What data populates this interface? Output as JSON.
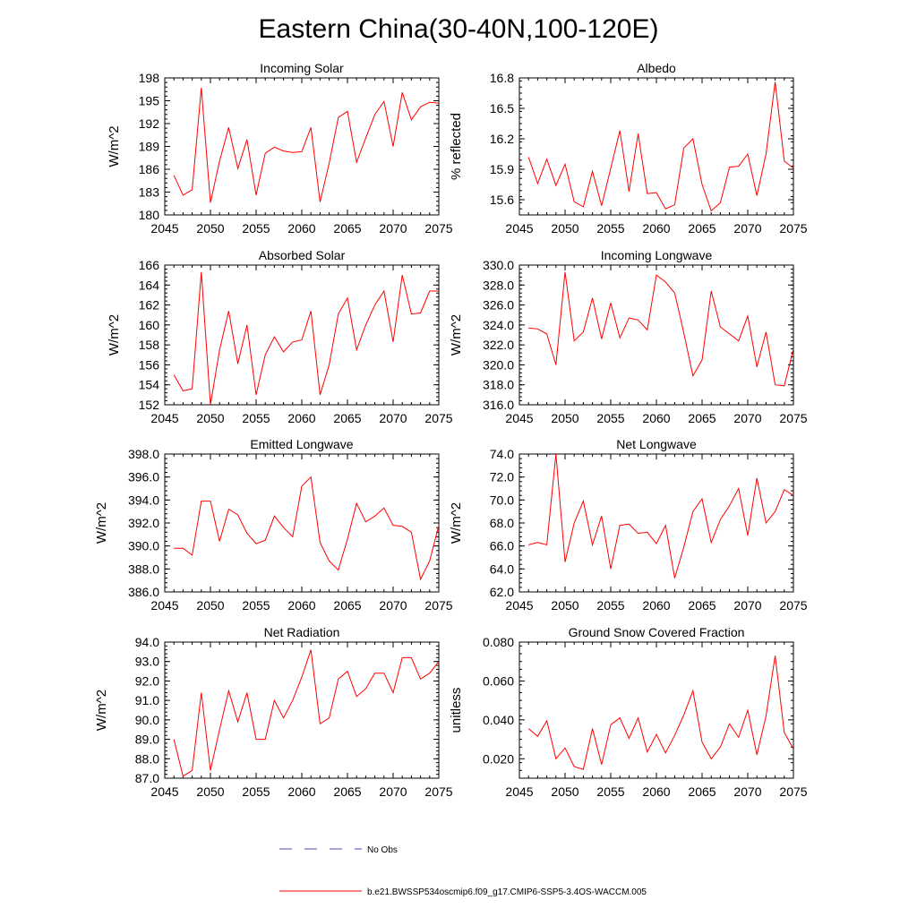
{
  "figure": {
    "title": "Eastern China(30-40N,100-120E)"
  },
  "legend": {
    "obs_label": "No Obs",
    "model_label": "b.e21.BWSSP534oscmip6.f09_g17.CMIP6-SSP5-3.4OS-WACCM.005",
    "obs_color": "#4b4bb4",
    "model_color": "#ff0000"
  },
  "chart_data": [
    {
      "type": "line",
      "title": "Incoming Solar",
      "ylabel": "W/m^2",
      "xlabel": "",
      "xlim": [
        2045,
        2075
      ],
      "ylim": [
        180,
        198
      ],
      "xticks": [
        "2045",
        "2050",
        "2055",
        "2060",
        "2065",
        "2070",
        "2075"
      ],
      "yticks": [
        "180",
        "183",
        "186",
        "189",
        "192",
        "195",
        "198"
      ],
      "series": [
        {
          "name": "b.e21.BWSSP534oscmip6.f09_g17.CMIP6-SSP5-3.4OS-WACCM.005",
          "x": [
            2046,
            2047,
            2048,
            2049,
            2050,
            2051,
            2052,
            2053,
            2054,
            2055,
            2056,
            2057,
            2058,
            2059,
            2060,
            2061,
            2062,
            2063,
            2064,
            2065,
            2066,
            2067,
            2068,
            2069,
            2070,
            2071,
            2072,
            2073,
            2074,
            2075
          ],
          "values": [
            185.2,
            182.6,
            183.3,
            196.7,
            181.6,
            187.1,
            191.5,
            186.1,
            189.9,
            182.6,
            188.1,
            188.9,
            188.4,
            188.2,
            188.3,
            191.5,
            181.7,
            186.8,
            192.8,
            193.6,
            186.9,
            190.1,
            193.2,
            194.9,
            189.0,
            196.1,
            192.5,
            194.2,
            194.8,
            194.7
          ]
        }
      ]
    },
    {
      "type": "line",
      "title": "Albedo",
      "ylabel": "% reflected",
      "xlabel": "",
      "xlim": [
        2045,
        2075
      ],
      "ylim": [
        15.45,
        16.8
      ],
      "xticks": [
        "2045",
        "2050",
        "2055",
        "2060",
        "2065",
        "2070",
        "2075"
      ],
      "yticks": [
        "15.6",
        "15.9",
        "16.2",
        "16.5",
        "16.8"
      ],
      "series": [
        {
          "name": "b.e21.BWSSP534oscmip6.f09_g17.CMIP6-SSP5-3.4OS-WACCM.005",
          "x": [
            2046,
            2047,
            2048,
            2049,
            2050,
            2051,
            2052,
            2053,
            2054,
            2055,
            2056,
            2057,
            2058,
            2059,
            2060,
            2061,
            2062,
            2063,
            2064,
            2065,
            2066,
            2067,
            2068,
            2069,
            2070,
            2071,
            2072,
            2073,
            2074,
            2075
          ],
          "values": [
            16.02,
            15.76,
            16.0,
            15.74,
            15.95,
            15.58,
            15.53,
            15.88,
            15.54,
            15.91,
            16.28,
            15.68,
            16.25,
            15.66,
            15.67,
            15.51,
            15.55,
            16.11,
            16.2,
            15.75,
            15.49,
            15.57,
            15.92,
            15.93,
            16.05,
            15.64,
            16.05,
            16.76,
            15.98,
            15.91
          ]
        }
      ]
    },
    {
      "type": "line",
      "title": "Absorbed Solar",
      "ylabel": "W/m^2",
      "xlabel": "",
      "xlim": [
        2045,
        2075
      ],
      "ylim": [
        152,
        166
      ],
      "xticks": [
        "2045",
        "2050",
        "2055",
        "2060",
        "2065",
        "2070",
        "2075"
      ],
      "yticks": [
        "152",
        "154",
        "156",
        "158",
        "160",
        "162",
        "164",
        "166"
      ],
      "series": [
        {
          "name": "b.e21.BWSSP534oscmip6.f09_g17.CMIP6-SSP5-3.4OS-WACCM.005",
          "x": [
            2046,
            2047,
            2048,
            2049,
            2050,
            2051,
            2052,
            2053,
            2054,
            2055,
            2056,
            2057,
            2058,
            2059,
            2060,
            2061,
            2062,
            2063,
            2064,
            2065,
            2066,
            2067,
            2068,
            2069,
            2070,
            2071,
            2072,
            2073,
            2074,
            2075
          ],
          "values": [
            155.0,
            153.4,
            153.6,
            165.3,
            152.0,
            157.5,
            161.4,
            156.1,
            160.0,
            153.0,
            157.0,
            158.8,
            157.3,
            158.3,
            158.5,
            161.4,
            153.0,
            156.0,
            161.1,
            162.7,
            157.5,
            160.0,
            162.0,
            163.4,
            158.3,
            165.0,
            161.1,
            161.2,
            163.4,
            163.4
          ]
        }
      ]
    },
    {
      "type": "line",
      "title": "Incoming Longwave",
      "ylabel": "W/m^2",
      "xlabel": "",
      "xlim": [
        2045,
        2075
      ],
      "ylim": [
        316,
        330
      ],
      "xticks": [
        "2045",
        "2050",
        "2055",
        "2060",
        "2065",
        "2070",
        "2075"
      ],
      "yticks": [
        "316.0",
        "318.0",
        "320.0",
        "322.0",
        "324.0",
        "326.0",
        "328.0",
        "330.0"
      ],
      "series": [
        {
          "name": "b.e21.BWSSP534oscmip6.f09_g17.CMIP6-SSP5-3.4OS-WACCM.005",
          "x": [
            2046,
            2047,
            2048,
            2049,
            2050,
            2051,
            2052,
            2053,
            2054,
            2055,
            2056,
            2057,
            2058,
            2059,
            2060,
            2061,
            2062,
            2063,
            2064,
            2065,
            2066,
            2067,
            2068,
            2069,
            2070,
            2071,
            2072,
            2073,
            2074,
            2075
          ],
          "values": [
            323.7,
            323.6,
            323.1,
            320.0,
            329.3,
            322.4,
            323.3,
            326.7,
            322.6,
            326.2,
            322.7,
            324.7,
            324.5,
            323.5,
            329.0,
            328.3,
            327.2,
            323.2,
            318.9,
            320.5,
            327.4,
            323.8,
            323.1,
            322.4,
            324.9,
            319.8,
            323.3,
            318.0,
            317.9,
            321.6
          ]
        }
      ]
    },
    {
      "type": "line",
      "title": "Emitted Longwave",
      "ylabel": "W/m^2",
      "xlabel": "",
      "xlim": [
        2045,
        2075
      ],
      "ylim": [
        386,
        398
      ],
      "xticks": [
        "2045",
        "2050",
        "2055",
        "2060",
        "2065",
        "2070",
        "2075"
      ],
      "yticks": [
        "386.0",
        "388.0",
        "390.0",
        "392.0",
        "394.0",
        "396.0",
        "398.0"
      ],
      "series": [
        {
          "name": "b.e21.BWSSP534oscmip6.f09_g17.CMIP6-SSP5-3.4OS-WACCM.005",
          "x": [
            2046,
            2047,
            2048,
            2049,
            2050,
            2051,
            2052,
            2053,
            2054,
            2055,
            2056,
            2057,
            2058,
            2059,
            2060,
            2061,
            2062,
            2063,
            2064,
            2065,
            2066,
            2067,
            2068,
            2069,
            2070,
            2071,
            2072,
            2073,
            2074,
            2075
          ],
          "values": [
            389.8,
            389.8,
            389.2,
            393.9,
            393.9,
            390.4,
            393.2,
            392.7,
            391.1,
            390.2,
            390.5,
            392.6,
            391.6,
            390.8,
            395.2,
            396.0,
            390.3,
            388.7,
            387.9,
            390.6,
            393.7,
            392.1,
            392.6,
            393.3,
            391.8,
            391.7,
            391.2,
            387.1,
            388.7,
            391.8
          ]
        }
      ]
    },
    {
      "type": "line",
      "title": "Net Longwave",
      "ylabel": "W/m^2",
      "xlabel": "",
      "xlim": [
        2045,
        2075
      ],
      "ylim": [
        62,
        74
      ],
      "xticks": [
        "2045",
        "2050",
        "2055",
        "2060",
        "2065",
        "2070",
        "2075"
      ],
      "yticks": [
        "62.0",
        "64.0",
        "66.0",
        "68.0",
        "70.0",
        "72.0",
        "74.0"
      ],
      "series": [
        {
          "name": "b.e21.BWSSP534oscmip6.f09_g17.CMIP6-SSP5-3.4OS-WACCM.005",
          "x": [
            2046,
            2047,
            2048,
            2049,
            2050,
            2051,
            2052,
            2053,
            2054,
            2055,
            2056,
            2057,
            2058,
            2059,
            2060,
            2061,
            2062,
            2063,
            2064,
            2065,
            2066,
            2067,
            2068,
            2069,
            2070,
            2071,
            2072,
            2073,
            2074,
            2075
          ],
          "values": [
            66.1,
            66.3,
            66.1,
            74.0,
            64.6,
            68.0,
            69.9,
            66.1,
            68.6,
            64.0,
            67.8,
            67.9,
            67.1,
            67.2,
            66.2,
            67.8,
            63.2,
            65.9,
            69.0,
            70.1,
            66.3,
            68.3,
            69.5,
            71.0,
            66.9,
            71.9,
            68.0,
            69.0,
            70.9,
            70.4
          ]
        }
      ]
    },
    {
      "type": "line",
      "title": "Net Radiation",
      "ylabel": "W/m^2",
      "xlabel": "",
      "xlim": [
        2045,
        2075
      ],
      "ylim": [
        87,
        94
      ],
      "xticks": [
        "2045",
        "2050",
        "2055",
        "2060",
        "2065",
        "2070",
        "2075"
      ],
      "yticks": [
        "87.0",
        "88.0",
        "89.0",
        "90.0",
        "91.0",
        "92.0",
        "93.0",
        "94.0"
      ],
      "series": [
        {
          "name": "b.e21.BWSSP534oscmip6.f09_g17.CMIP6-SSP5-3.4OS-WACCM.005",
          "x": [
            2046,
            2047,
            2048,
            2049,
            2050,
            2051,
            2052,
            2053,
            2054,
            2055,
            2056,
            2057,
            2058,
            2059,
            2060,
            2061,
            2062,
            2063,
            2064,
            2065,
            2066,
            2067,
            2068,
            2069,
            2070,
            2071,
            2072,
            2073,
            2074,
            2075
          ],
          "values": [
            89.0,
            87.1,
            87.4,
            91.4,
            87.4,
            89.5,
            91.5,
            89.9,
            91.4,
            89.0,
            89.0,
            91.0,
            90.1,
            91.0,
            92.2,
            93.6,
            89.8,
            90.1,
            92.1,
            92.5,
            91.2,
            91.6,
            92.4,
            92.4,
            91.4,
            93.2,
            93.2,
            92.1,
            92.4,
            93.0
          ]
        }
      ]
    },
    {
      "type": "line",
      "title": "Ground Snow Covered Fraction",
      "ylabel": "unitless",
      "xlabel": "",
      "xlim": [
        2045,
        2075
      ],
      "ylim": [
        0.01,
        0.08
      ],
      "xticks": [
        "2045",
        "2050",
        "2055",
        "2060",
        "2065",
        "2070",
        "2075"
      ],
      "yticks": [
        "0.020",
        "0.040",
        "0.060",
        "0.080"
      ],
      "series": [
        {
          "name": "b.e21.BWSSP534oscmip6.f09_g17.CMIP6-SSP5-3.4OS-WACCM.005",
          "x": [
            2046,
            2047,
            2048,
            2049,
            2050,
            2051,
            2052,
            2053,
            2054,
            2055,
            2056,
            2057,
            2058,
            2059,
            2060,
            2061,
            2062,
            2063,
            2064,
            2065,
            2066,
            2067,
            2068,
            2069,
            2070,
            2071,
            2072,
            2073,
            2074,
            2075
          ],
          "values": [
            0.0355,
            0.0315,
            0.0395,
            0.02,
            0.0255,
            0.016,
            0.0145,
            0.0355,
            0.017,
            0.0375,
            0.041,
            0.0305,
            0.041,
            0.0235,
            0.0325,
            0.023,
            0.032,
            0.0425,
            0.055,
            0.0285,
            0.02,
            0.026,
            0.038,
            0.031,
            0.045,
            0.022,
            0.042,
            0.073,
            0.0335,
            0.025
          ]
        }
      ]
    }
  ]
}
